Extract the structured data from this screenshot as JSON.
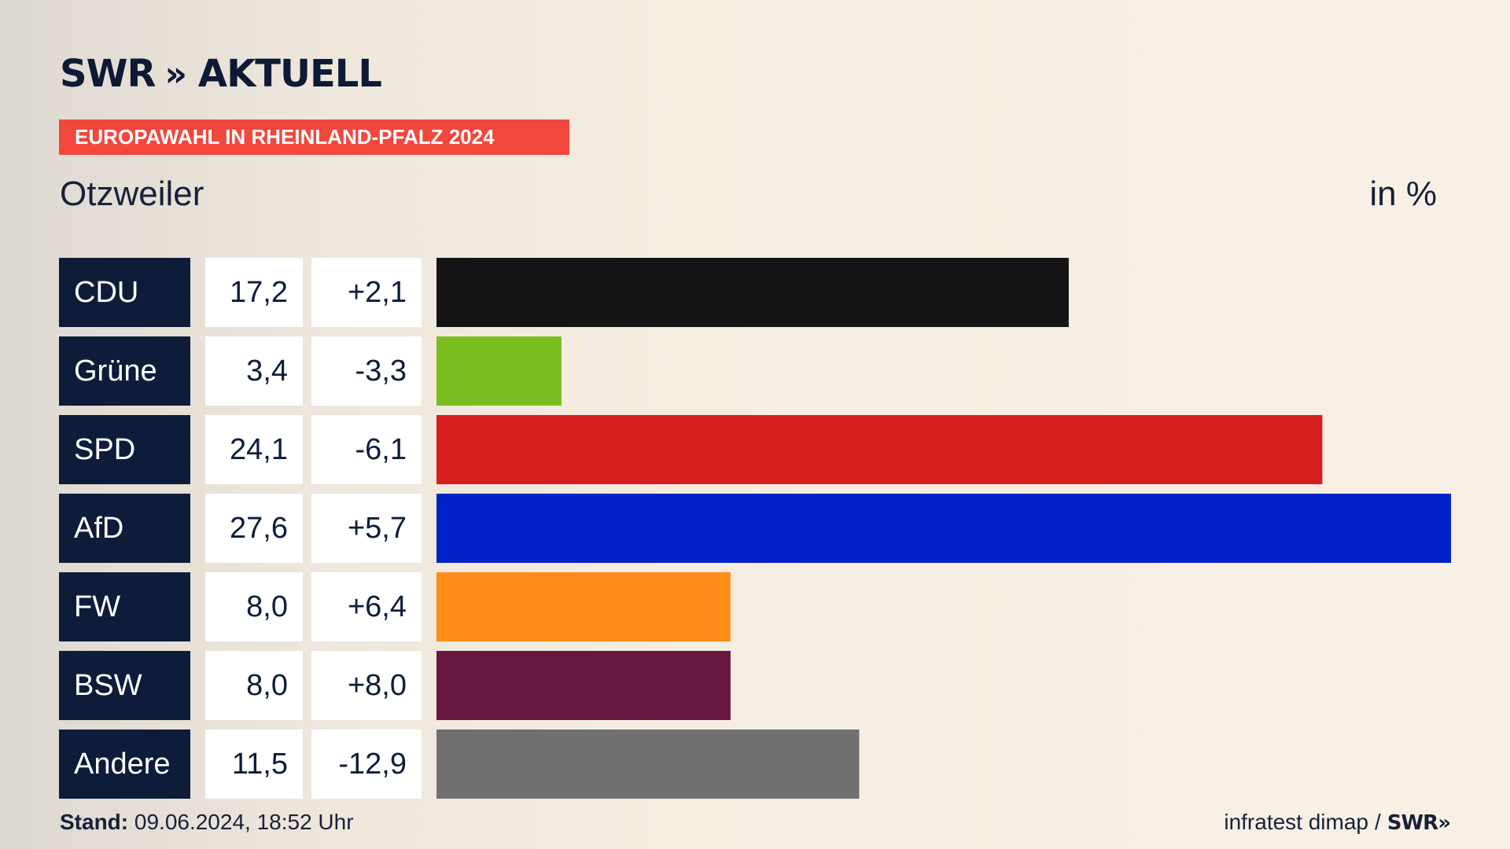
{
  "brand": {
    "name": "SWR",
    "chevrons": "»",
    "product": "AKTUELL"
  },
  "tag": "EUROPAWAHL IN RHEINLAND-PFALZ 2024",
  "place": "Otzweiler",
  "unit_label": "in %",
  "footer": {
    "stand_label": "Stand:",
    "stand_value": "09.06.2024, 18:52 Uhr",
    "source": "infratest dimap",
    "separator": "/",
    "source_logo": "SWR",
    "source_logo_chevrons": "»"
  },
  "chart_data": {
    "type": "bar",
    "orientation": "horizontal",
    "categories": [
      "CDU",
      "Grüne",
      "SPD",
      "AfD",
      "FW",
      "BSW",
      "Andere"
    ],
    "values": [
      17.2,
      3.4,
      24.1,
      27.6,
      8.0,
      8.0,
      11.5
    ],
    "value_labels": [
      "17,2",
      "3,4",
      "24,1",
      "27,6",
      "8,0",
      "8,0",
      "11,5"
    ],
    "change_labels": [
      "+2,1",
      "-3,3",
      "-6,1",
      "+5,7",
      "+6,4",
      "+8,0",
      "-12,9"
    ],
    "colors": [
      "#141414",
      "#7abd1e",
      "#d71f1f",
      "#0021c8",
      "#ff8c19",
      "#67173e",
      "#707070"
    ],
    "xlim": [
      0,
      27.6
    ]
  }
}
